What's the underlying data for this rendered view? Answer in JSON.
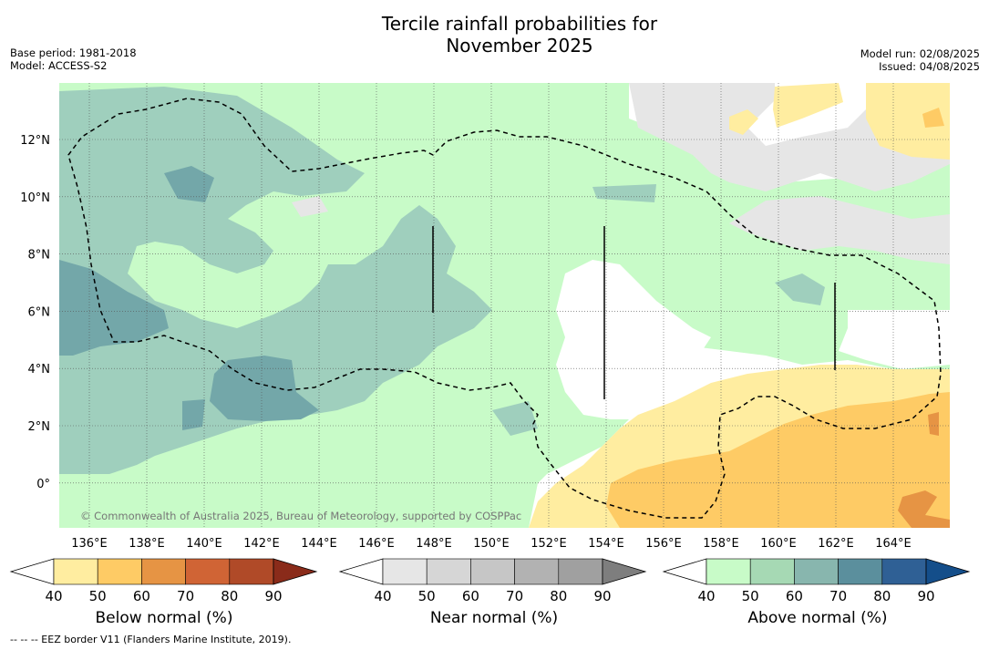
{
  "title_line1": "Tercile rainfall probabilities for",
  "title_line2": "November 2025",
  "meta_left": [
    "Base period: 1981-2018",
    "Model: ACCESS-S2"
  ],
  "meta_right": [
    "Model run: 02/08/2025",
    "Issued: 04/08/2025"
  ],
  "copyright": "© Commonwealth of Australia 2025, Bureau of Meteorology, supported by COSPPac",
  "footnote": "--  --  -- EEZ border V11 (Flanders Marine Institute, 2019).",
  "lon_labels": [
    "136°E",
    "138°E",
    "140°E",
    "142°E",
    "144°E",
    "146°E",
    "148°E",
    "150°E",
    "152°E",
    "154°E",
    "156°E",
    "158°E",
    "160°E",
    "162°E",
    "164°E"
  ],
  "lat_labels": [
    "12°N",
    "10°N",
    "8°N",
    "6°N",
    "4°N",
    "2°N",
    "0°"
  ],
  "colorbars": [
    {
      "label": "Below normal (%)",
      "ticks": [
        "40",
        "50",
        "60",
        "70",
        "80",
        "90"
      ],
      "colors": [
        "#ffffff",
        "#ffeda0",
        "#fecb65",
        "#e69444",
        "#d06435",
        "#b04a28",
        "#8a2b1a"
      ]
    },
    {
      "label": "Near normal (%)",
      "ticks": [
        "40",
        "50",
        "60",
        "70",
        "80",
        "90"
      ],
      "colors": [
        "#ffffff",
        "#e6e6e6",
        "#d6d6d6",
        "#c6c6c6",
        "#b2b2b2",
        "#a0a0a0",
        "#7e7e7e"
      ]
    },
    {
      "label": "Above normal (%)",
      "ticks": [
        "40",
        "50",
        "60",
        "70",
        "80",
        "90"
      ],
      "colors": [
        "#ffffff",
        "#c8fbc8",
        "#a6d9b4",
        "#88b6ae",
        "#5b8f9d",
        "#2f6095",
        "#144e8a"
      ]
    }
  ],
  "colors": {
    "above_50": "#c8fbc8",
    "above_60": "#9fcfbd",
    "above_70": "#73a7a9",
    "near_50": "#e6e6e6",
    "below_50": "#ffeda0",
    "below_60": "#fecb65",
    "below_70": "#e69444"
  }
}
